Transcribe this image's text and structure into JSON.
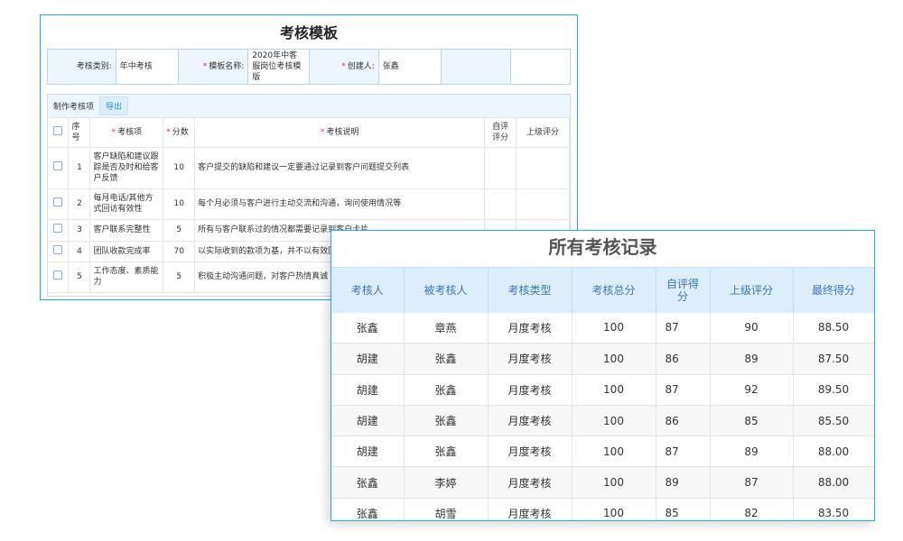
{
  "template": {
    "title": "考核模板",
    "info": {
      "type_label": "考核类别:",
      "type_value": "年中考核",
      "name_label": "模板名称:",
      "name_value": "2020年中客服岗位考核模版",
      "creator_label": "创建人:",
      "creator_value": "张鑫"
    },
    "toolbar": {
      "label": "制作考核项",
      "export": "导出"
    },
    "columns": [
      "序号",
      "考核项",
      "分数",
      "考核说明",
      "自评评分",
      "上级评分"
    ],
    "rows": [
      {
        "no": "1",
        "item": "客户缺陷和建议跟踪是否及时和给客户反馈",
        "score": "10",
        "desc": "客户提交的缺陷和建议一定要通过记录到客户问题提交列表"
      },
      {
        "no": "2",
        "item": "每月电话/其他方式回访有效性",
        "score": "10",
        "desc": "每个月必须与客户进行主动交流和沟通，询问使用情况等"
      },
      {
        "no": "3",
        "item": "客户联系完整性",
        "score": "5",
        "desc": "所有与客户联系过的情况都需要记录到客户卡片"
      },
      {
        "no": "4",
        "item": "团队收款完成率",
        "score": "70",
        "desc": "以实际收到的款项为基，并不以有效回"
      },
      {
        "no": "5",
        "item": "工作态度、素质能力",
        "score": "5",
        "desc": "积极主动沟通问题，对客户热情真诚"
      }
    ]
  },
  "records": {
    "title": "所有考核记录",
    "columns": [
      "考核人",
      "被考核人",
      "考核类型",
      "考核总分",
      "自评得分",
      "上级评分",
      "最终得分"
    ],
    "rows": [
      [
        "张鑫",
        "章燕",
        "月度考核",
        "100",
        "87",
        "90",
        "88.50"
      ],
      [
        "胡建",
        "张鑫",
        "月度考核",
        "100",
        "86",
        "89",
        "87.50"
      ],
      [
        "胡建",
        "张鑫",
        "月度考核",
        "100",
        "87",
        "92",
        "89.50"
      ],
      [
        "胡建",
        "张鑫",
        "月度考核",
        "100",
        "86",
        "85",
        "85.50"
      ],
      [
        "胡建",
        "张鑫",
        "月度考核",
        "100",
        "87",
        "89",
        "88.00"
      ],
      [
        "张鑫",
        "李婷",
        "月度考核",
        "100",
        "89",
        "87",
        "88.00"
      ],
      [
        "张鑫",
        "胡雪",
        "月度考核",
        "100",
        "85",
        "82",
        "83.50"
      ]
    ]
  }
}
